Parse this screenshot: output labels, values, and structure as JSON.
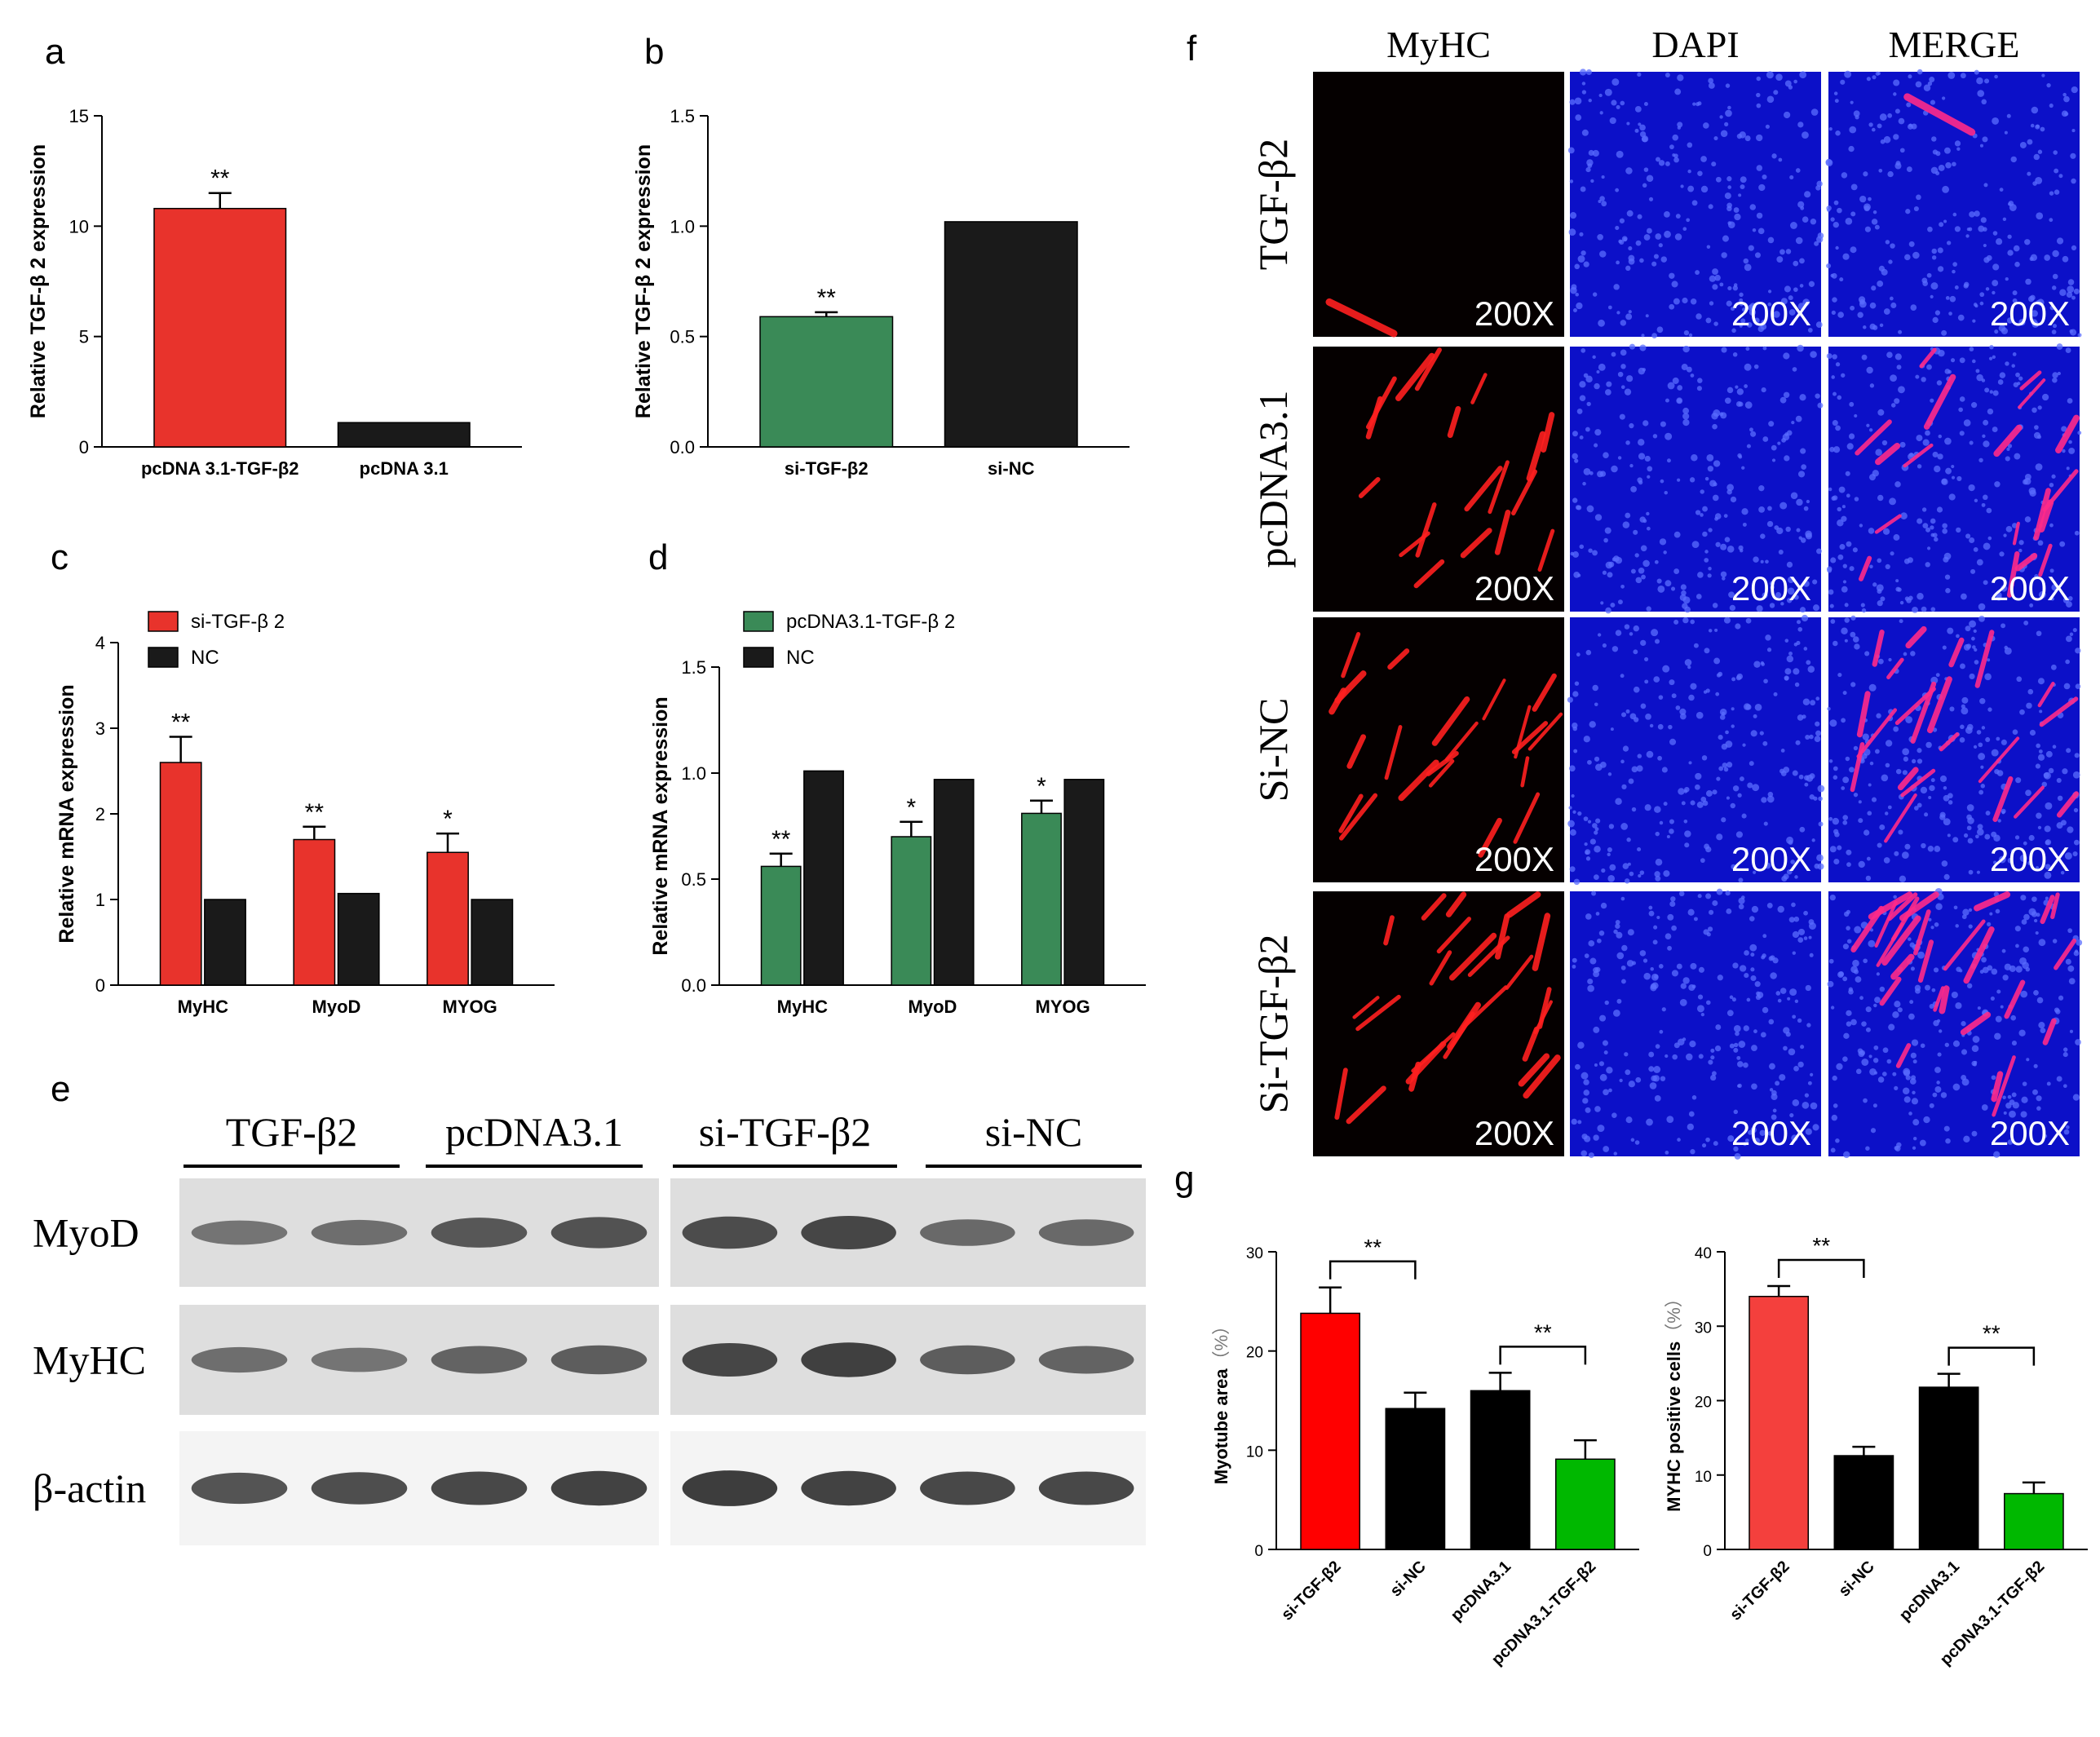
{
  "panels": {
    "a": {
      "letter": "a",
      "chart_data": {
        "type": "bar",
        "categories": [
          "pcDNA 3.1-TGF-β2",
          "pcDNA 3.1"
        ],
        "values": [
          10.8,
          1.1
        ],
        "errors": [
          0.7,
          0.0
        ],
        "colors": [
          "#e8332c",
          "#1a1a1a"
        ],
        "significance": [
          "**",
          ""
        ],
        "ylabel": "Relative TGF-β 2 expression",
        "ylim": [
          0,
          15
        ],
        "yticks": [
          "0",
          "5",
          "10",
          "15"
        ]
      }
    },
    "b": {
      "letter": "b",
      "chart_data": {
        "type": "bar",
        "categories": [
          "si-TGF-β2",
          "si-NC"
        ],
        "values": [
          0.59,
          1.02
        ],
        "errors": [
          0.02,
          0.0
        ],
        "colors": [
          "#3a8a57",
          "#1a1a1a"
        ],
        "significance": [
          "**",
          ""
        ],
        "ylabel": "Relative TGF-β 2 expression",
        "ylim": [
          0,
          1.5
        ],
        "yticks": [
          "0.0",
          "0.5",
          "1.0",
          "1.5"
        ]
      }
    },
    "c": {
      "letter": "c",
      "chart_data": {
        "type": "bar",
        "categories": [
          "MyHC",
          "MyoD",
          "MYOG"
        ],
        "series": [
          {
            "name": "si-TGF-β 2",
            "color": "#e8332c",
            "values": [
              2.6,
              1.7,
              1.55
            ],
            "errors": [
              0.3,
              0.15,
              0.22
            ],
            "significance": [
              "**",
              "**",
              "*"
            ]
          },
          {
            "name": "NC",
            "color": "#1a1a1a",
            "values": [
              1.0,
              1.07,
              1.0
            ],
            "errors": [
              0,
              0,
              0
            ],
            "significance": [
              "",
              "",
              ""
            ]
          }
        ],
        "ylabel": "Relative mRNA expression",
        "ylim": [
          0,
          4
        ],
        "yticks": [
          "0",
          "1",
          "2",
          "3",
          "4"
        ]
      }
    },
    "d": {
      "letter": "d",
      "chart_data": {
        "type": "bar",
        "categories": [
          "MyHC",
          "MyoD",
          "MYOG"
        ],
        "series": [
          {
            "name": "pcDNA3.1-TGF-β 2",
            "color": "#3a8a57",
            "values": [
              0.56,
              0.7,
              0.81
            ],
            "errors": [
              0.06,
              0.07,
              0.06
            ],
            "significance": [
              "**",
              "*",
              "*"
            ]
          },
          {
            "name": "NC",
            "color": "#1a1a1a",
            "values": [
              1.01,
              0.97,
              0.97
            ],
            "errors": [
              0,
              0,
              0
            ],
            "significance": [
              "",
              "",
              ""
            ]
          }
        ],
        "ylabel": "Relative mRNA expression",
        "ylim": [
          0,
          1.5
        ],
        "yticks": [
          "0.0",
          "0.5",
          "1.0",
          "1.5"
        ]
      }
    },
    "e": {
      "letter": "e",
      "groups": [
        "TGF-β2",
        "pcDNA3.1",
        "si-TGF-β2",
        "si-NC"
      ],
      "rows": [
        "MyoD",
        "MyHC",
        "β-actin"
      ],
      "intensity": [
        [
          0.35,
          0.4,
          0.6,
          0.65,
          0.7,
          0.75,
          0.45,
          0.45
        ],
        [
          0.4,
          0.35,
          0.5,
          0.55,
          0.75,
          0.8,
          0.55,
          0.5
        ],
        [
          0.65,
          0.7,
          0.75,
          0.8,
          0.85,
          0.8,
          0.75,
          0.75
        ]
      ]
    },
    "f": {
      "letter": "f",
      "columns": [
        "MyHC",
        "DAPI",
        "MERGE"
      ],
      "rows": [
        "TGF-β2",
        "pcDNA3.1",
        "Si-NC",
        "Si-TGF-β2"
      ],
      "magnification": "200X"
    },
    "g": {
      "letter": "g",
      "chart_data": [
        {
          "type": "bar",
          "categories": [
            "si-TGF-β2",
            "si-NC",
            "pcDNA3.1",
            "pcDNA3.1-TGF-β2"
          ],
          "values": [
            23.8,
            14.2,
            16.0,
            9.1
          ],
          "errors": [
            2.6,
            1.6,
            1.8,
            1.9
          ],
          "colors": [
            "#ff0000",
            "#000000",
            "#000000",
            "#00b800"
          ],
          "ylabel": "Myotube area",
          "ylabel_unit": "（%）",
          "ylim": [
            0,
            30
          ],
          "yticks": [
            "0",
            "10",
            "20",
            "30"
          ],
          "brackets": [
            {
              "from": 0,
              "to": 1,
              "label": "**"
            },
            {
              "from": 2,
              "to": 3,
              "label": "**"
            }
          ]
        },
        {
          "type": "bar",
          "categories": [
            "si-TGF-β2",
            "si-NC",
            "pcDNA3.1",
            "pcDNA3.1-TGF-β2"
          ],
          "values": [
            34.0,
            12.6,
            21.8,
            7.5
          ],
          "errors": [
            1.4,
            1.2,
            1.8,
            1.5
          ],
          "colors": [
            "#f4403d",
            "#000000",
            "#000000",
            "#00b800"
          ],
          "ylabel": "MYHC positive cells",
          "ylabel_unit": "（%）",
          "ylim": [
            0,
            40
          ],
          "yticks": [
            "0",
            "10",
            "20",
            "30",
            "40"
          ],
          "brackets": [
            {
              "from": 0,
              "to": 1,
              "label": "**"
            },
            {
              "from": 2,
              "to": 3,
              "label": "**"
            }
          ]
        }
      ]
    }
  }
}
